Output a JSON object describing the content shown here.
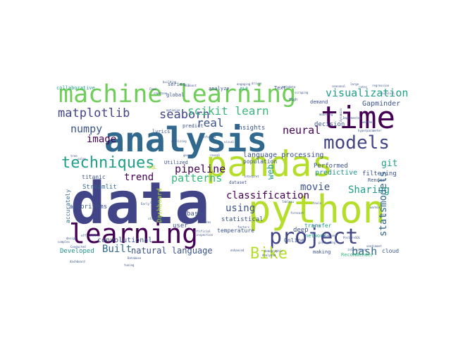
{
  "palette": {
    "dark_purple": "#440154",
    "indigo": "#3b528b",
    "navy": "#414487",
    "slate": "#31688e",
    "teal": "#21918c",
    "sea": "#1f9e89",
    "green": "#35b779",
    "lime": "#6ece58",
    "yellow_green": "#b5de2b",
    "yellow": "#fde725"
  },
  "words": [
    {
      "text": "data",
      "color": "navy"
    },
    {
      "text": "analysis",
      "color": "slate"
    },
    {
      "text": "python",
      "color": "yellow_green"
    },
    {
      "text": "pandas",
      "color": "yellow_green"
    },
    {
      "text": "time",
      "color": "dark_purple"
    },
    {
      "text": "machine learning",
      "color": "lime"
    },
    {
      "text": "learning",
      "color": "dark_purple"
    },
    {
      "text": "project",
      "color": "navy"
    },
    {
      "text": "models",
      "color": "navy"
    },
    {
      "text": "techniques",
      "color": "sea"
    },
    {
      "text": "visualization",
      "color": "sea"
    },
    {
      "text": "matplotlib",
      "color": "navy"
    },
    {
      "text": "seaborn",
      "color": "navy"
    },
    {
      "text": "scikit learn",
      "color": "green"
    },
    {
      "text": "numpy",
      "color": "indigo"
    },
    {
      "text": "image",
      "color": "dark_purple"
    },
    {
      "text": "neural",
      "color": "dark_purple"
    },
    {
      "text": "real",
      "color": "indigo"
    },
    {
      "text": "pipeline",
      "color": "dark_purple"
    },
    {
      "text": "patterns",
      "color": "green"
    },
    {
      "text": "trend",
      "color": "dark_purple"
    },
    {
      "text": "classification",
      "color": "dark_purple"
    },
    {
      "text": "using",
      "color": "indigo"
    },
    {
      "text": "movie",
      "color": "indigo"
    },
    {
      "text": "Sharing",
      "color": "sea"
    },
    {
      "text": "statsmodels",
      "color": "slate"
    },
    {
      "text": "Bike",
      "color": "yellow_green"
    },
    {
      "text": "bash",
      "color": "slate"
    },
    {
      "text": "git",
      "color": "sea"
    },
    {
      "text": "web",
      "color": "sea"
    },
    {
      "text": "Built",
      "color": "slate"
    },
    {
      "text": "natural language",
      "color": "indigo"
    },
    {
      "text": "Developed",
      "color": "teal"
    },
    {
      "text": "language processing",
      "color": "indigo"
    },
    {
      "text": "Gapminder",
      "color": "indigo"
    },
    {
      "text": "predictive",
      "color": "teal"
    },
    {
      "text": "decision",
      "color": "indigo"
    },
    {
      "text": "filtering",
      "color": "indigo"
    },
    {
      "text": "insights",
      "color": "indigo"
    },
    {
      "text": "convolutional",
      "color": "indigo"
    },
    {
      "text": "deep",
      "color": "indigo"
    },
    {
      "text": "Online",
      "color": "indigo"
    },
    {
      "text": "cloud",
      "color": "indigo"
    },
    {
      "text": "making",
      "color": "indigo"
    },
    {
      "text": "Streamlit",
      "color": "slate"
    },
    {
      "text": "algorithms",
      "color": "indigo"
    },
    {
      "text": "titanic",
      "color": "indigo"
    },
    {
      "text": "Dashboard",
      "color": "yellow_green"
    },
    {
      "text": "user",
      "color": "indigo"
    },
    {
      "text": "temperature",
      "color": "indigo"
    },
    {
      "text": "based",
      "color": "indigo"
    },
    {
      "text": "statistical",
      "color": "indigo"
    },
    {
      "text": "population",
      "color": "indigo"
    },
    {
      "text": "Performed",
      "color": "indigo"
    },
    {
      "text": "demand",
      "color": "indigo"
    },
    {
      "text": "global",
      "color": "indigo"
    },
    {
      "text": "analyze",
      "color": "indigo"
    },
    {
      "text": "collaborative",
      "color": "sea"
    },
    {
      "text": "series",
      "color": "indigo"
    },
    {
      "text": "lyrics",
      "color": "indigo"
    },
    {
      "text": "predict",
      "color": "indigo"
    },
    {
      "text": "Text",
      "color": "indigo"
    },
    {
      "text": "SQL",
      "color": "yellow_green"
    },
    {
      "text": "Utilized",
      "color": "indigo"
    },
    {
      "text": "accurately",
      "color": "slate"
    },
    {
      "text": "transfer",
      "color": "sea"
    },
    {
      "text": "network",
      "color": "sea"
    },
    {
      "text": "Render",
      "color": "indigo"
    },
    {
      "text": "Recommender",
      "color": "green"
    },
    {
      "text": "dataset",
      "color": "indigo"
    },
    {
      "text": "NLP",
      "color": "sea"
    },
    {
      "text": "High",
      "color": "indigo"
    },
    {
      "text": "Food",
      "color": "indigo"
    },
    {
      "text": "XGBoost",
      "color": "indigo"
    },
    {
      "text": "building",
      "color": "indigo"
    },
    {
      "text": "optimize",
      "color": "indigo"
    },
    {
      "text": "capstone",
      "color": "indigo"
    },
    {
      "text": "dynamics",
      "color": "indigo"
    },
    {
      "text": "hyperparameter",
      "color": "indigo"
    },
    {
      "text": "engaging",
      "color": "indigo"
    },
    {
      "text": "demographic",
      "color": "indigo"
    },
    {
      "text": "driven",
      "color": "indigo"
    },
    {
      "text": "metadata",
      "color": "indigo"
    },
    {
      "text": "scraping",
      "color": "indigo"
    },
    {
      "text": "factor",
      "color": "indigo"
    },
    {
      "text": "PostgreSQL",
      "color": "indigo"
    },
    {
      "text": "tuning",
      "color": "indigo"
    },
    {
      "text": "Database",
      "color": "indigo"
    },
    {
      "text": "enhanced",
      "color": "indigo"
    },
    {
      "text": "Analysed",
      "color": "indigo"
    },
    {
      "text": "artificial",
      "color": "indigo"
    },
    {
      "text": "Conducted",
      "color": "indigo"
    },
    {
      "text": "complex",
      "color": "indigo"
    },
    {
      "text": "efficiently",
      "color": "indigo"
    },
    {
      "text": "inspection",
      "color": "indigo"
    },
    {
      "text": "sentiment",
      "color": "indigo"
    },
    {
      "text": "database",
      "color": "indigo"
    },
    {
      "text": "interactive",
      "color": "indigo"
    },
    {
      "text": "survival",
      "color": "indigo"
    },
    {
      "text": "modeling",
      "color": "indigo"
    },
    {
      "text": "weather",
      "color": "indigo"
    },
    {
      "text": "regression",
      "color": "indigo"
    },
    {
      "text": "rates",
      "color": "indigo"
    },
    {
      "text": "shares",
      "color": "indigo"
    },
    {
      "text": "factors",
      "color": "indigo"
    },
    {
      "text": "large",
      "color": "indigo"
    },
    {
      "text": "seasonal",
      "color": "indigo"
    },
    {
      "text": "Implemented",
      "color": "indigo"
    },
    {
      "text": "forecast",
      "color": "indigo"
    },
    {
      "text": "predicting",
      "color": "indigo"
    },
    {
      "text": "design",
      "color": "indigo"
    },
    {
      "text": "dashboard",
      "color": "indigo"
    },
    {
      "text": "Early",
      "color": "indigo"
    },
    {
      "text": "structures",
      "color": "indigo"
    },
    {
      "text": "clean",
      "color": "indigo"
    },
    {
      "text": "utilizing",
      "color": "indigo"
    },
    {
      "text": "genre",
      "color": "indigo"
    },
    {
      "text": "interpret",
      "color": "indigo"
    },
    {
      "text": "informed",
      "color": "indigo"
    },
    {
      "text": "reveal",
      "color": "indigo"
    },
    {
      "text": "visual",
      "color": "indigo"
    },
    {
      "text": "Tableau",
      "color": "indigo"
    },
    {
      "text": "tools",
      "color": "indigo"
    },
    {
      "text": "warming",
      "color": "indigo"
    },
    {
      "text": "key",
      "color": "indigo"
    },
    {
      "text": "sales",
      "color": "indigo"
    },
    {
      "text": "tree",
      "color": "indigo"
    }
  ]
}
